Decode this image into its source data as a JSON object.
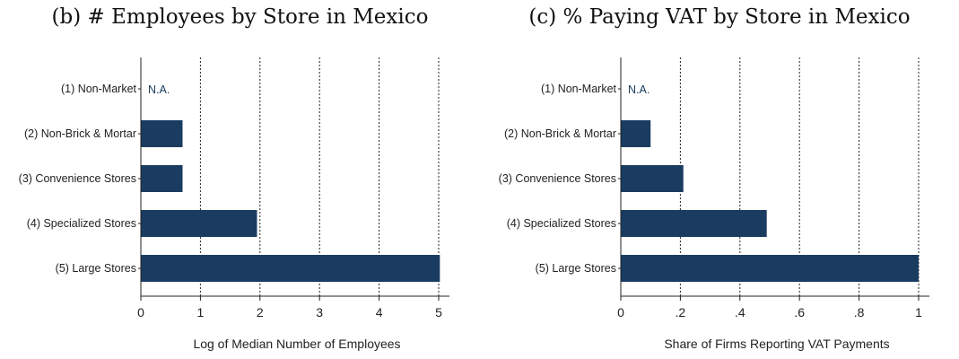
{
  "chart_data": [
    {
      "type": "bar",
      "orientation": "horizontal",
      "title": "(b) # Employees by Store in Mexico",
      "xlabel": "Log of Median Number of Employees",
      "categories": [
        "(1) Non-Market",
        "(2) Non-Brick & Mortar",
        "(3) Convenience Stores",
        "(4) Specialized Stores",
        "(5) Large Stores"
      ],
      "values": [
        null,
        0.7,
        0.7,
        1.95,
        5.02
      ],
      "value_labels": [
        "N.A.",
        "",
        "",
        "",
        ""
      ],
      "xlim": [
        0,
        5.2
      ],
      "xticks": [
        0,
        1,
        2,
        3,
        4,
        5
      ],
      "xtick_labels": [
        "0",
        "1",
        "2",
        "3",
        "4",
        "5"
      ],
      "grid": "vertical dotted",
      "bar_color": "#1b3c61"
    },
    {
      "type": "bar",
      "orientation": "horizontal",
      "title": "(c) % Paying VAT by Store in Mexico",
      "xlabel": "Share of Firms Reporting VAT Payments",
      "categories": [
        "(1) Non-Market",
        "(2) Non-Brick & Mortar",
        "(3) Convenience Stores",
        "(4) Specialized Stores",
        "(5) Large Stores"
      ],
      "values": [
        null,
        0.1,
        0.21,
        0.49,
        1.0
      ],
      "value_labels": [
        "N.A.",
        "",
        "",
        "",
        ""
      ],
      "xlim": [
        0,
        1.04
      ],
      "xticks": [
        0,
        0.2,
        0.4,
        0.6,
        0.8,
        1
      ],
      "xtick_labels": [
        "0",
        ".2",
        ".4",
        ".6",
        ".8",
        "1"
      ],
      "grid": "vertical dotted",
      "bar_color": "#1b3c61"
    }
  ]
}
